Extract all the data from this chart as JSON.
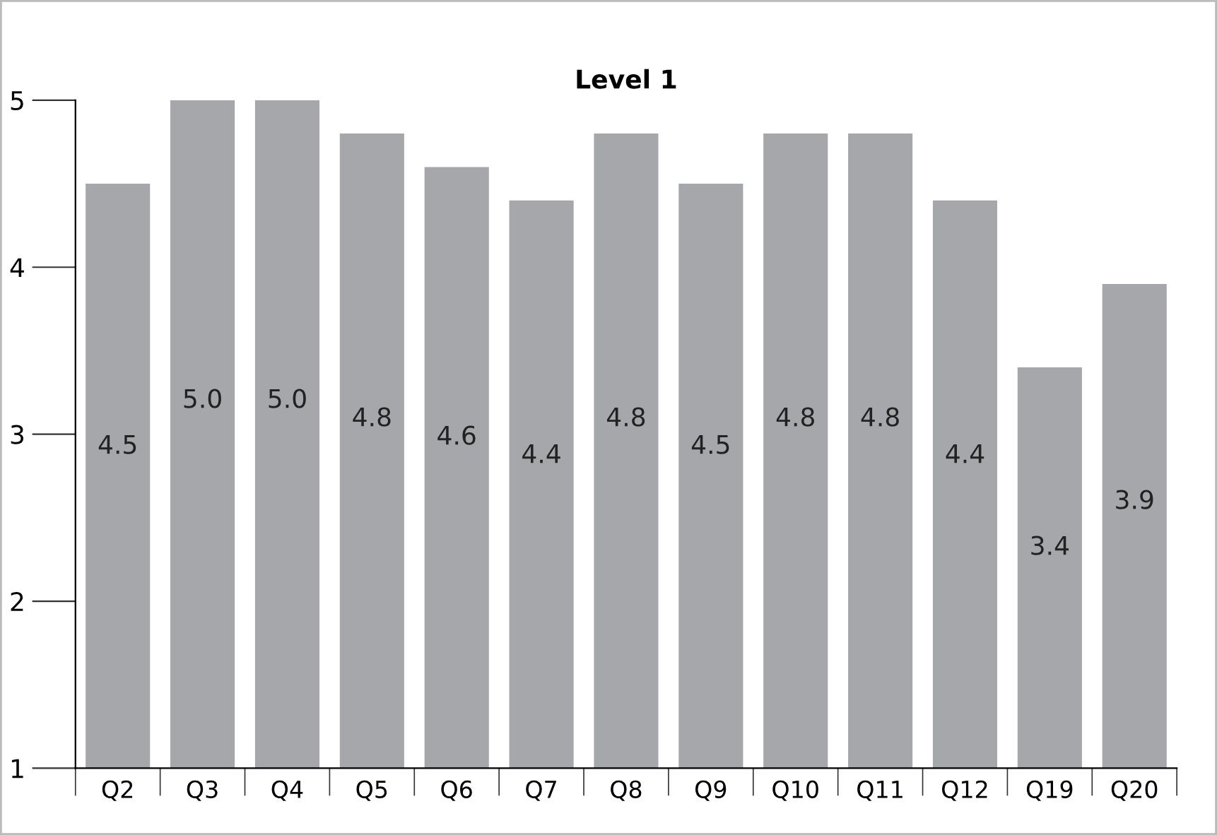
{
  "chart_data": {
    "type": "bar",
    "title": "Level 1",
    "categories": [
      "Q2",
      "Q3",
      "Q4",
      "Q5",
      "Q6",
      "Q7",
      "Q8",
      "Q9",
      "Q10",
      "Q11",
      "Q12",
      "Q19",
      "Q20"
    ],
    "values": [
      4.5,
      5.0,
      5.0,
      4.8,
      4.6,
      4.4,
      4.8,
      4.5,
      4.8,
      4.8,
      4.4,
      3.4,
      3.9
    ],
    "color": "#a6a7aa",
    "ylim": [
      1,
      5
    ],
    "yticks": [
      1,
      2,
      3,
      4,
      5
    ],
    "grid": false,
    "value_labels": [
      "4.5",
      "5.0",
      "5.0",
      "4.8",
      "4.6",
      "4.4",
      "4.8",
      "4.5",
      "4.8",
      "4.8",
      "4.4",
      "3.4",
      "3.9"
    ]
  }
}
